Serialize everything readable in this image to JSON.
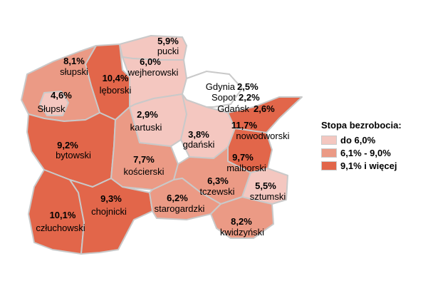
{
  "legend": {
    "title": "Stopa bezrobocia:",
    "items": [
      {
        "label": "do 6,0%",
        "color": "#f4c7c0"
      },
      {
        "label": "6,1% - 9,0%",
        "color": "#eb9a85"
      },
      {
        "label": "9,1% i więcej",
        "color": "#e2664a"
      }
    ]
  },
  "regions": {
    "slupski": {
      "name": "słupski",
      "value": "8,1%"
    },
    "slupsk": {
      "name": "Słupsk",
      "value": "4,6%"
    },
    "leborski": {
      "name": "lęborski",
      "value": "10,4%"
    },
    "pucki": {
      "name": "pucki",
      "value": "5,9%"
    },
    "wejherowski": {
      "name": "wejherowski",
      "value": "6,0%"
    },
    "kartuski": {
      "name": "kartuski",
      "value": "2,9%"
    },
    "bytowski": {
      "name": "bytowski",
      "value": "9,2%"
    },
    "koscierski": {
      "name": "kościerski",
      "value": "7,7%"
    },
    "gdanski": {
      "name": "gdański",
      "value": "3,8%"
    },
    "nowodworski": {
      "name": "nowodworski",
      "value": "11,7%"
    },
    "malborski": {
      "name": "malborski",
      "value": "9,7%"
    },
    "tczewski": {
      "name": "tczewski",
      "value": "6,3%"
    },
    "sztumski": {
      "name": "sztumski",
      "value": "5,5%"
    },
    "starogardzki": {
      "name": "starogardzki",
      "value": "6,2%"
    },
    "chojnicki": {
      "name": "chojnicki",
      "value": "9,3%"
    },
    "czluchowski": {
      "name": "człuchowski",
      "value": "10,1%"
    },
    "kwidzynski": {
      "name": "kwidzyński",
      "value": "8,2%"
    }
  },
  "cities": {
    "gdynia": {
      "name": "Gdynia",
      "value": "2,5%"
    },
    "sopot": {
      "name": "Sopot",
      "value": "2,2%"
    },
    "gdansk": {
      "name": "Gdańsk",
      "value": "2,6%"
    }
  }
}
